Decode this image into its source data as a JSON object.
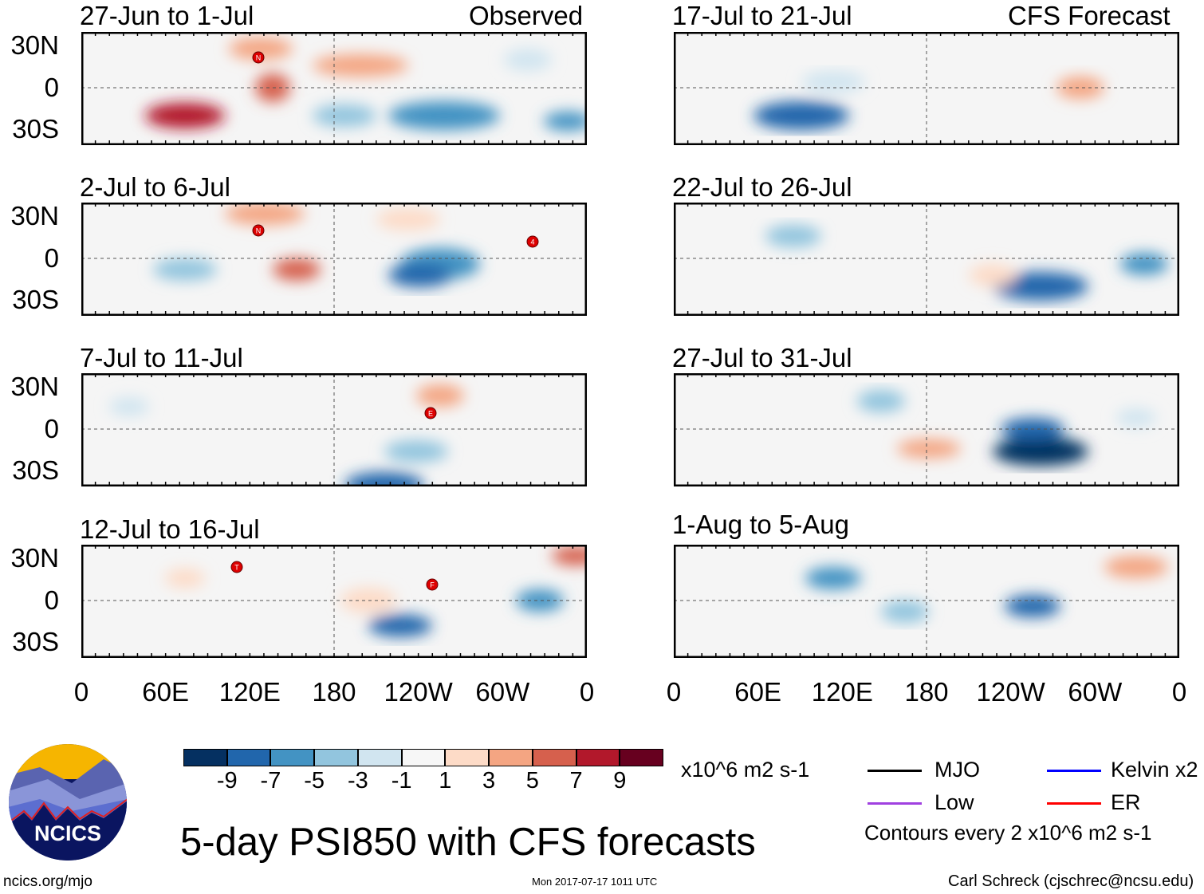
{
  "observed_label": "Observed",
  "forecast_label": "CFS Forecast",
  "panels_left": [
    {
      "title": "27-Jun to 1-Jul",
      "storms": [
        "N"
      ]
    },
    {
      "title": "2-Jul to 6-Jul",
      "storms": [
        "N",
        "4"
      ]
    },
    {
      "title": "7-Jul to 11-Jul",
      "storms": [
        "E"
      ]
    },
    {
      "title": "12-Jul to 16-Jul",
      "storms": [
        "T",
        "F"
      ]
    }
  ],
  "panels_right": [
    {
      "title": "17-Jul to 21-Jul"
    },
    {
      "title": "22-Jul to 26-Jul"
    },
    {
      "title": "27-Jul to 31-Jul"
    },
    {
      "title": "1-Aug to 5-Aug"
    }
  ],
  "y_ticks": [
    "30N",
    "0",
    "30S"
  ],
  "x_ticks": [
    "0",
    "60E",
    "120E",
    "180",
    "120W",
    "60W",
    "0"
  ],
  "colorbar": {
    "colors": [
      "#053061",
      "#2166ac",
      "#4393c3",
      "#92c5de",
      "#d1e5f0",
      "#f7f7f7",
      "#fddbc7",
      "#f4a582",
      "#d6604d",
      "#b2182b",
      "#67001f"
    ],
    "labels": [
      "-9",
      "-7",
      "-5",
      "-3",
      "-1",
      "1",
      "3",
      "5",
      "7",
      "9"
    ],
    "units": "x10^6 m2 s-1"
  },
  "legend": {
    "items": [
      {
        "label": "MJO",
        "color": "#000000"
      },
      {
        "label": "Kelvin x2",
        "color": "#0000ff"
      },
      {
        "label": "Low",
        "color": "#a040e0"
      },
      {
        "label": "ER",
        "color": "#ff0000"
      }
    ],
    "contours_note": "Contours every 2 x10^6 m2 s-1"
  },
  "main_title": "5-day PSI850 with CFS forecasts",
  "logo_text": "NCICS",
  "footer": {
    "url": "ncics.org/mjo",
    "timestamp": "Mon 2017-07-17 1011 UTC",
    "author": "Carl Schreck (cjschrec@ncsu.edu)"
  }
}
